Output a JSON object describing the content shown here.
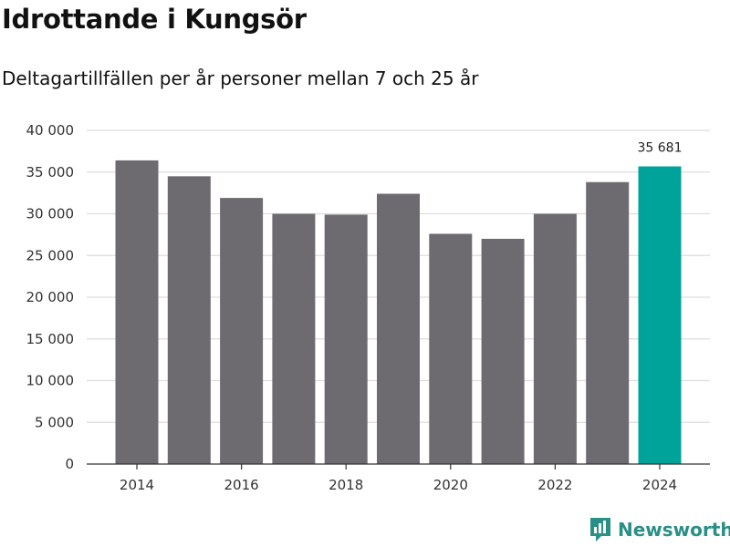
{
  "chart_data": {
    "type": "bar",
    "title": "Idrottande i Kungsör",
    "subtitle": "Deltagartillfällen per år personer mellan 7 och 25 år",
    "categories": [
      "2014",
      "2015",
      "2016",
      "2017",
      "2018",
      "2019",
      "2020",
      "2021",
      "2022",
      "2023",
      "2024"
    ],
    "values": [
      36400,
      34500,
      31900,
      30000,
      29900,
      32400,
      27600,
      27000,
      30000,
      33800,
      35681
    ],
    "highlight_index": 10,
    "highlight_label": "35 681",
    "ylim": [
      0,
      40000
    ],
    "yticks": [
      0,
      5000,
      10000,
      15000,
      20000,
      25000,
      30000,
      35000,
      40000
    ],
    "ytick_labels": [
      "0",
      "5 000",
      "10 000",
      "15 000",
      "20 000",
      "25 000",
      "30 000",
      "35 000",
      "40 000"
    ],
    "xtick_labels": [
      "2014",
      "2016",
      "2018",
      "2020",
      "2022",
      "2024"
    ],
    "xlabel": "",
    "ylabel": "",
    "grid": true,
    "colors": {
      "bar": "#6d6b70",
      "highlight": "#00a39a",
      "grid": "#dddddd",
      "axis": "#333333"
    }
  },
  "branding": {
    "logo_text": "Newsworthy",
    "logo_icon": "newsworthy-chart-icon",
    "logo_color": "#2a8f87"
  }
}
